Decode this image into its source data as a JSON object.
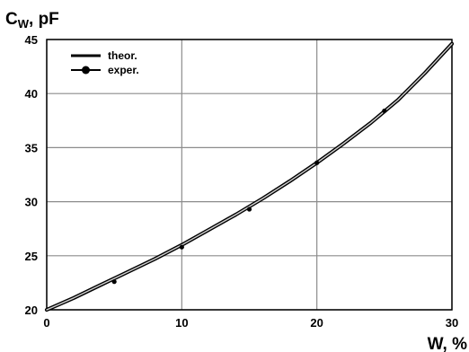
{
  "chart_data": {
    "type": "line",
    "ylabel_main": "C",
    "ylabel_sub": "W",
    "ylabel_rest": ", pF",
    "xlabel": "W, %",
    "xlim": [
      0,
      30
    ],
    "ylim": [
      20,
      45
    ],
    "xticks": [
      0,
      10,
      20,
      30
    ],
    "yticks": [
      20,
      25,
      30,
      35,
      40,
      45
    ],
    "grid": true,
    "legend_position": "top-left",
    "series": [
      {
        "name": "theor.",
        "style": "line",
        "x": [
          0,
          2,
          4,
          6,
          8,
          10,
          12,
          14,
          16,
          18,
          20,
          22,
          24,
          26,
          28,
          30
        ],
        "y": [
          20.0,
          21.1,
          22.3,
          23.5,
          24.7,
          26.0,
          27.4,
          28.8,
          30.3,
          31.9,
          33.6,
          35.4,
          37.3,
          39.4,
          41.9,
          44.6
        ]
      },
      {
        "name": "exper.",
        "style": "points",
        "x": [
          5,
          10,
          15,
          20,
          25
        ],
        "y": [
          22.6,
          25.8,
          29.3,
          33.6,
          38.4
        ]
      }
    ]
  }
}
